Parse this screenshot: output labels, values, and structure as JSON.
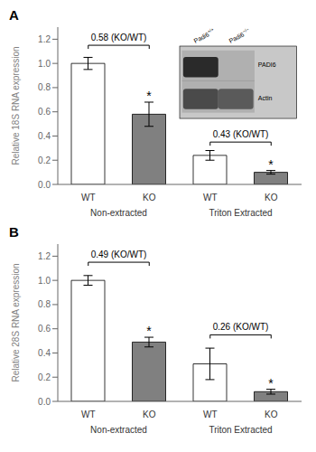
{
  "chart_data": [
    {
      "type": "bar",
      "title": "A",
      "y_label": "Relative 18S RNA expression",
      "categories": [
        "WT",
        "KO",
        "WT",
        "KO"
      ],
      "groups": [
        {
          "label": "Non-extracted",
          "ratio_text": "0.58 (KO/WT)",
          "bracket_y": 1.15
        },
        {
          "label": "Triton Extracted",
          "ratio_text": "0.43 (KO/WT)",
          "bracket_y": 0.35
        }
      ],
      "values": [
        1.0,
        0.58,
        0.24,
        0.1
      ],
      "errors": [
        0.05,
        0.1,
        0.04,
        0.015
      ],
      "colors": [
        "white",
        "#808080",
        "white",
        "#808080"
      ],
      "annotations": [
        null,
        "*",
        null,
        "*"
      ],
      "ylim": [
        0,
        1.3
      ],
      "yticks": [
        {
          "value": 0,
          "label": "0.0"
        },
        0.2,
        0.4,
        0.6,
        0.8,
        {
          "value": 1.0,
          "label": "1.0"
        },
        1.2
      ],
      "inset": {
        "row_labels": [
          "PADI6",
          "Actin"
        ],
        "column_labels": [
          {
            "text": "Padi6",
            "superscript": "+/+"
          },
          {
            "text": "Padi6",
            "superscript": "−/−"
          }
        ],
        "band_colors": [
          [
            "#2a2a2a",
            null
          ],
          [
            "#4a4a4a",
            "#5a5a5a"
          ]
        ]
      }
    },
    {
      "type": "bar",
      "title": "B",
      "y_label": "Relative 28S RNA expression",
      "categories": [
        "WT",
        "KO",
        "WT",
        "KO"
      ],
      "groups": [
        {
          "label": "Non-extracted",
          "ratio_text": "0.49 (KO/WT)",
          "bracket_y": 1.15
        },
        {
          "label": "Triton Extracted",
          "ratio_text": "0.26 (KO/WT)",
          "bracket_y": 0.55
        }
      ],
      "values": [
        1.0,
        0.49,
        0.31,
        0.08
      ],
      "errors": [
        0.04,
        0.04,
        0.13,
        0.02
      ],
      "colors": [
        "white",
        "#808080",
        "white",
        "#808080"
      ],
      "annotations": [
        null,
        "*",
        null,
        "*"
      ],
      "ylim": [
        0,
        1.3
      ],
      "yticks": [
        {
          "value": 0,
          "label": "0.0"
        },
        0.2,
        0.4,
        0.6,
        0.8,
        {
          "value": 1.0,
          "label": "1.0"
        },
        1.2
      ]
    }
  ]
}
